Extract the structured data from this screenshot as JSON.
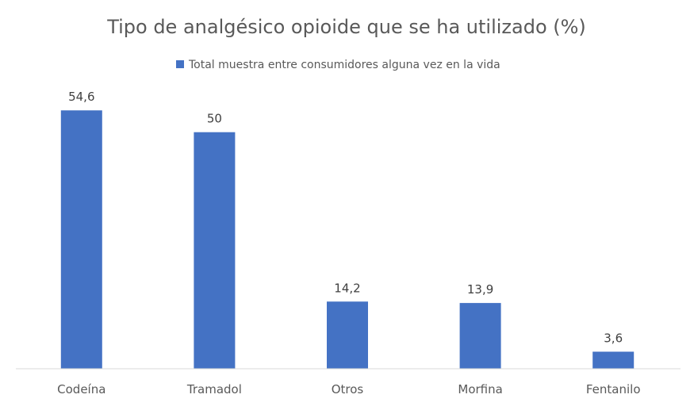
{
  "chart_data": {
    "type": "bar",
    "title": "Tipo de analgésico opioide que se ha utilizado (%)",
    "categories": [
      "Codeína",
      "Tramadol",
      "Otros",
      "Morfina",
      "Fentanilo"
    ],
    "series": [
      {
        "name": "Total muestra entre consumidores alguna vez en la vida",
        "values": [
          54.6,
          50,
          14.2,
          13.9,
          3.6
        ],
        "value_labels": [
          "54,6",
          "50",
          "14,2",
          "13,9",
          "3,6"
        ],
        "color": "#4472C4"
      }
    ],
    "ylim": [
      0,
      60
    ],
    "grid": false,
    "legend": "top-center",
    "data_labels": true
  },
  "colors": {
    "axis": "#D9D9D9",
    "text": "#595959",
    "value_text": "#404040"
  }
}
